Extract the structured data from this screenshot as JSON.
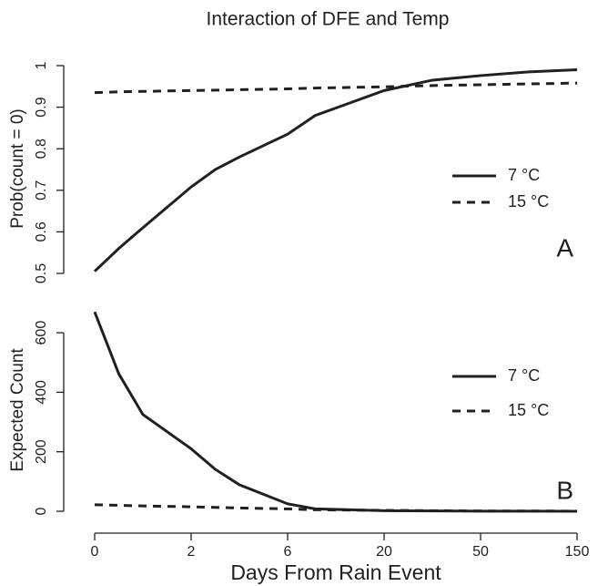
{
  "chart_data": [
    {
      "type": "line",
      "title": "Interaction of DFE and Temp",
      "ylabel": "Prob(count = 0)",
      "annotation": "A",
      "legend": "right",
      "x": [
        0,
        0.5,
        1,
        2,
        3,
        4,
        6,
        10,
        20,
        35,
        50,
        100,
        150
      ],
      "series": [
        {
          "name": "7 °C",
          "color": "#231f20",
          "linestyle": "solid",
          "values": [
            0.505,
            0.56,
            0.61,
            0.708,
            0.75,
            0.78,
            0.835,
            0.88,
            0.94,
            0.965,
            0.976,
            0.985,
            0.99
          ]
        },
        {
          "name": "15 °C",
          "color": "#231f20",
          "linestyle": "dashed",
          "values": [
            0.935,
            0.937,
            0.938,
            0.94,
            0.941,
            0.942,
            0.944,
            0.946,
            0.949,
            0.952,
            0.954,
            0.956,
            0.958
          ]
        }
      ],
      "xlim": [
        0,
        150
      ],
      "ylim": [
        0.5,
        1
      ],
      "yticks": [
        0.5,
        0.6,
        0.7,
        0.8,
        0.9,
        1
      ]
    },
    {
      "type": "line",
      "ylabel": "Expected Count",
      "xlabel": "Days From Rain Event",
      "annotation": "B",
      "legend": "right",
      "x": [
        0,
        0.5,
        1,
        2,
        3,
        4,
        6,
        10,
        20,
        35,
        50,
        100,
        150
      ],
      "series": [
        {
          "name": "7 °C",
          "color": "#231f20",
          "linestyle": "solid",
          "values": [
            670,
            462,
            325,
            210,
            141,
            89,
            25,
            8,
            2,
            1,
            0.5,
            0.2,
            0.1
          ]
        },
        {
          "name": "15 °C",
          "color": "#231f20",
          "linestyle": "dashed",
          "values": [
            22,
            20,
            18,
            15,
            13,
            11,
            8,
            5,
            3,
            2,
            1,
            0.7,
            0.5
          ]
        }
      ],
      "xlim": [
        0,
        150
      ],
      "xticks": [
        0,
        2,
        6,
        20,
        50,
        150
      ],
      "ylim": [
        0,
        680
      ],
      "yticks": [
        0,
        200,
        400,
        600
      ]
    }
  ]
}
